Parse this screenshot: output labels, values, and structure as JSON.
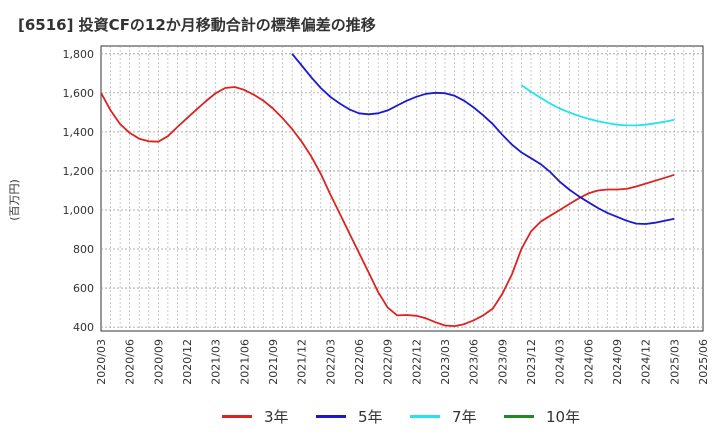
{
  "title": "[6516]  投資CFの12か月移動合計の標準偏差の推移",
  "chart_data": {
    "type": "line",
    "title": "[6516]  投資CFの12か月移動合計の標準偏差の推移",
    "xlabel": "",
    "ylabel": "(百万円)",
    "ylim": [
      380,
      1840
    ],
    "yticks": [
      400,
      600,
      800,
      1000,
      1200,
      1400,
      1600,
      1800
    ],
    "ytick_labels": [
      "400",
      "600",
      "800",
      "1,000",
      "1,200",
      "1,400",
      "1,600",
      "1,800"
    ],
    "xtick_labels": [
      "2020/03",
      "2020/06",
      "2020/09",
      "2020/12",
      "2021/03",
      "2021/06",
      "2021/09",
      "2021/12",
      "2022/03",
      "2022/06",
      "2022/09",
      "2022/12",
      "2023/03",
      "2023/06",
      "2023/09",
      "2023/12",
      "2024/03",
      "2024/06",
      "2024/09",
      "2024/12",
      "2025/03",
      "2025/06"
    ],
    "grid": true,
    "legend_position": "bottom",
    "series": [
      {
        "name": "3年",
        "color": "#dd2222",
        "x": [
          "2020/03",
          "2020/04",
          "2020/05",
          "2020/06",
          "2020/07",
          "2020/08",
          "2020/09",
          "2020/10",
          "2020/11",
          "2020/12",
          "2021/01",
          "2021/02",
          "2021/03",
          "2021/04",
          "2021/05",
          "2021/06",
          "2021/07",
          "2021/08",
          "2021/09",
          "2021/10",
          "2021/11",
          "2021/12",
          "2022/01",
          "2022/02",
          "2022/03",
          "2022/04",
          "2022/05",
          "2022/06",
          "2022/07",
          "2022/08",
          "2022/09",
          "2022/10",
          "2022/11",
          "2022/12",
          "2023/01",
          "2023/02",
          "2023/03",
          "2023/04",
          "2023/05",
          "2023/06",
          "2023/07",
          "2023/08",
          "2023/09",
          "2023/10",
          "2023/11",
          "2023/12",
          "2024/01",
          "2024/02",
          "2024/03",
          "2024/04",
          "2024/05",
          "2024/06",
          "2024/07",
          "2024/08",
          "2024/09",
          "2024/10",
          "2024/11",
          "2024/12",
          "2025/01",
          "2025/02",
          "2025/03"
        ],
        "values": [
          1600,
          1510,
          1440,
          1395,
          1365,
          1352,
          1350,
          1378,
          1425,
          1470,
          1515,
          1558,
          1598,
          1625,
          1630,
          1615,
          1590,
          1560,
          1520,
          1470,
          1415,
          1350,
          1275,
          1185,
          1080,
          980,
          880,
          780,
          680,
          580,
          500,
          460,
          462,
          458,
          445,
          425,
          408,
          405,
          415,
          435,
          460,
          495,
          570,
          670,
          800,
          890,
          940,
          970,
          1000,
          1030,
          1060,
          1085,
          1100,
          1105,
          1105,
          1108,
          1120,
          1135,
          1150,
          1165,
          1180
        ]
      },
      {
        "name": "5年",
        "color": "#1a1acc",
        "x": [
          "2021/11",
          "2021/12",
          "2022/01",
          "2022/02",
          "2022/03",
          "2022/04",
          "2022/05",
          "2022/06",
          "2022/07",
          "2022/08",
          "2022/09",
          "2022/10",
          "2022/11",
          "2022/12",
          "2023/01",
          "2023/02",
          "2023/03",
          "2023/04",
          "2023/05",
          "2023/06",
          "2023/07",
          "2023/08",
          "2023/09",
          "2023/10",
          "2023/11",
          "2023/12",
          "2024/01",
          "2024/02",
          "2024/03",
          "2024/04",
          "2024/05",
          "2024/06",
          "2024/07",
          "2024/08",
          "2024/09",
          "2024/10",
          "2024/11",
          "2024/12",
          "2025/01",
          "2025/02",
          "2025/03"
        ],
        "values": [
          1800,
          1740,
          1680,
          1625,
          1580,
          1545,
          1515,
          1495,
          1490,
          1495,
          1510,
          1535,
          1560,
          1580,
          1595,
          1600,
          1598,
          1585,
          1560,
          1525,
          1485,
          1440,
          1385,
          1335,
          1295,
          1265,
          1235,
          1195,
          1145,
          1105,
          1070,
          1040,
          1010,
          985,
          965,
          945,
          930,
          928,
          935,
          945,
          955
        ]
      },
      {
        "name": "7年",
        "color": "#22e5f0",
        "x": [
          "2023/11",
          "2023/12",
          "2024/01",
          "2024/02",
          "2024/03",
          "2024/04",
          "2024/05",
          "2024/06",
          "2024/07",
          "2024/08",
          "2024/09",
          "2024/10",
          "2024/11",
          "2024/12",
          "2025/01",
          "2025/02",
          "2025/03"
        ],
        "values": [
          1640,
          1605,
          1575,
          1545,
          1520,
          1500,
          1482,
          1467,
          1455,
          1445,
          1437,
          1433,
          1433,
          1437,
          1444,
          1452,
          1462
        ]
      },
      {
        "name": "10年",
        "color": "#228822",
        "x": [],
        "values": []
      }
    ]
  }
}
